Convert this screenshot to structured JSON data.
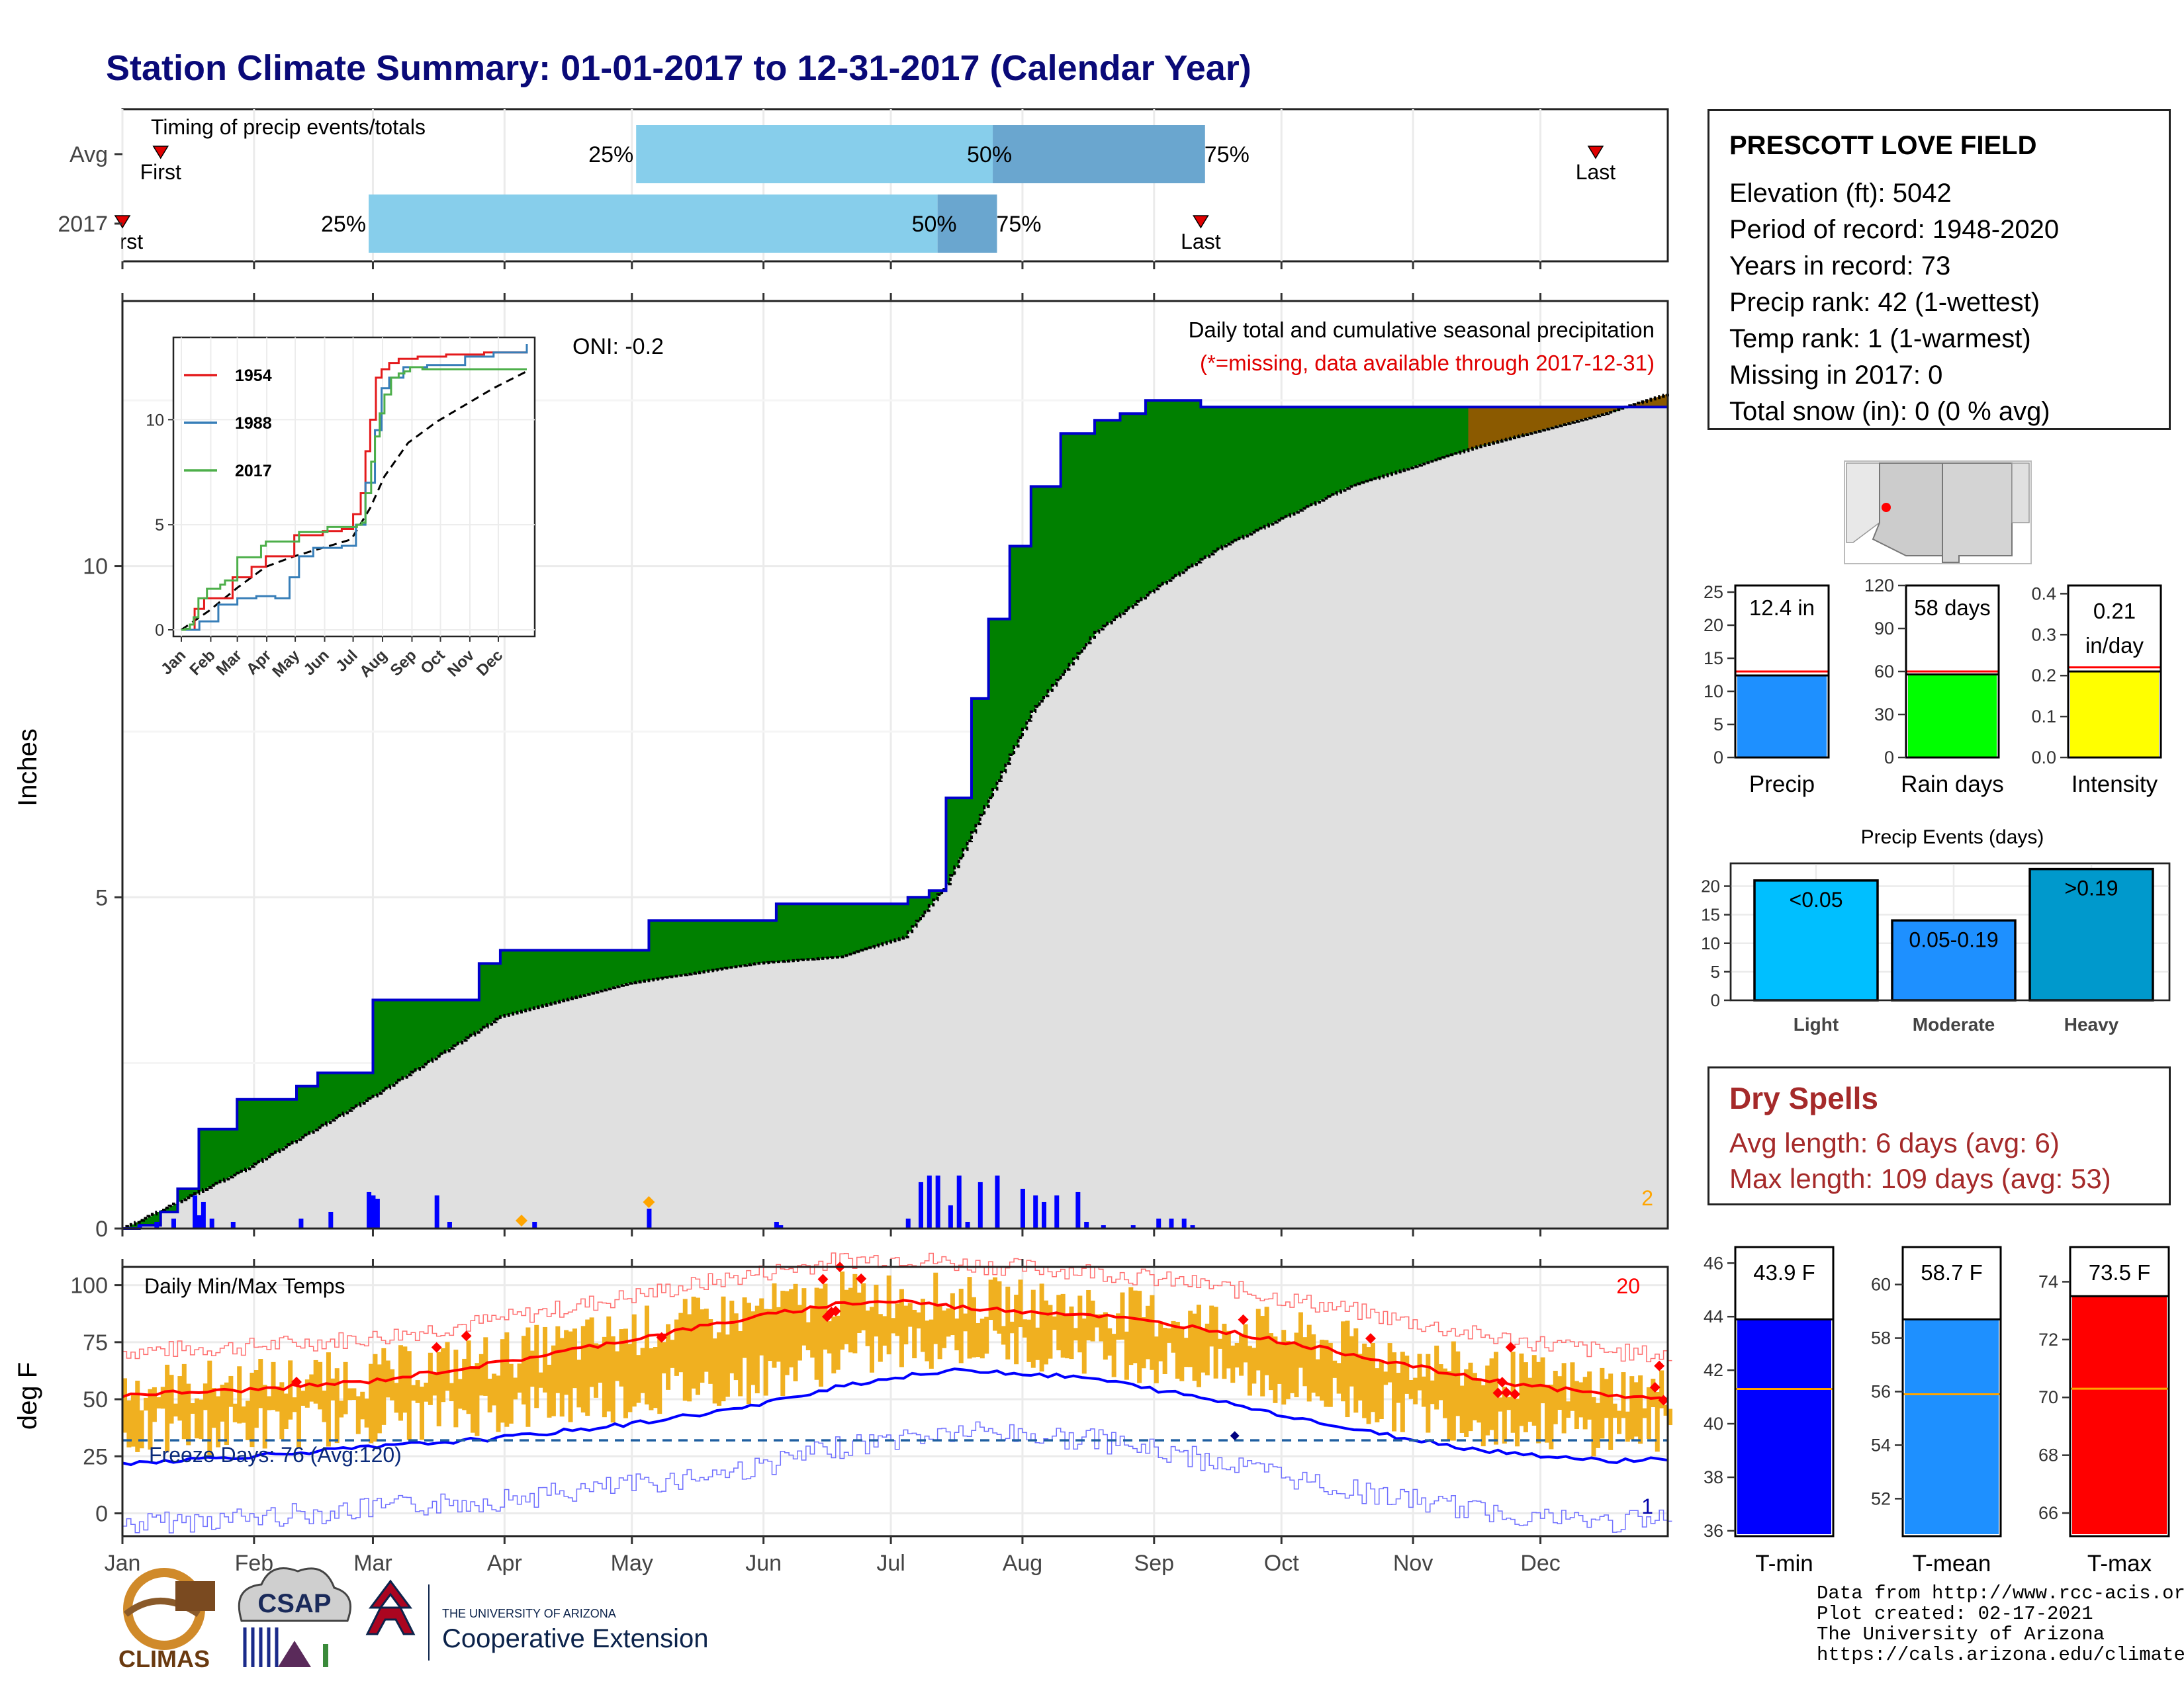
{
  "title": "Station Climate Summary: 01-01-2017 to 12-31-2017 (Calendar Year)",
  "colors": {
    "accent_title": "#0a0a78",
    "cumulative_above": "#008000",
    "cumulative_below_fill": "#e0e0e0",
    "daily_bars": "#0000ff",
    "range_bars": "#f0b020",
    "max_temp_avg": "#ff0000",
    "min_temp_avg": "#0000ff",
    "dry_spells": "#a52a2a",
    "tmin_bar": "#0000ff",
    "tmean_bar": "#1e90ff",
    "tmax_bar": "#ff0000",
    "precip_bar": "#1e90ff",
    "raindays_bar": "#00ff00",
    "intensity_bar": "#ffff00"
  },
  "months": [
    "Jan",
    "Feb",
    "Mar",
    "Apr",
    "May",
    "Jun",
    "Jul",
    "Aug",
    "Sep",
    "Oct",
    "Nov",
    "Dec"
  ],
  "timing": {
    "label": "Timing of precip events/totals",
    "rows": [
      {
        "name": "Avg",
        "first_label": "First",
        "last_label": "Last",
        "first_doy": 10,
        "last_doy": 348,
        "p25_doy": 122,
        "p50_doy": 206,
        "p75_doy": 256,
        "p25_label": "25%",
        "p50_label": "50%",
        "p75_label": "75%"
      },
      {
        "name": "2017",
        "first_label": "First",
        "last_label": "Last",
        "first_doy": 1,
        "last_doy": 255,
        "p25_doy": 59,
        "p50_doy": 193,
        "p75_doy": 207,
        "p25_label": "25%",
        "p50_label": "50%",
        "p75_label": "75%"
      }
    ]
  },
  "precip_panel": {
    "ylabel": "Inches",
    "yticks": [
      0,
      5,
      10
    ],
    "ylim": [
      0,
      14
    ],
    "title": "Daily total and cumulative seasonal precipitation",
    "subtitle": "(*=missing, data available through 2017-12-31)",
    "oni": "ONI: -0.2",
    "count_label": "2",
    "inset": {
      "yticks": [
        0,
        5,
        10
      ],
      "series": [
        {
          "name": "1954",
          "color": "#e41a1c"
        },
        {
          "name": "1988",
          "color": "#377eb8"
        },
        {
          "name": "2017",
          "color": "#4daf4a"
        }
      ]
    }
  },
  "chart_data": [
    {
      "type": "area",
      "title": "Daily total and cumulative seasonal precipitation",
      "ylabel": "Inches",
      "ylim": [
        0,
        14
      ],
      "series": [
        {
          "name": "2017 cumulative",
          "x_doy": [
            1,
            5,
            10,
            14,
            19,
            28,
            33,
            38,
            42,
            47,
            55,
            60,
            65,
            75,
            85,
            90,
            98,
            106,
            125,
            140,
            155,
            163,
            170,
            182,
            186,
            191,
            195,
            201,
            205,
            210,
            215,
            222,
            230,
            236,
            242,
            255,
            280,
            310,
            365
          ],
          "values": [
            0,
            0.05,
            0.25,
            0.6,
            1.5,
            1.95,
            1.95,
            1.95,
            2.15,
            2.35,
            2.35,
            3.45,
            3.45,
            3.45,
            4.0,
            4.2,
            4.2,
            4.2,
            4.65,
            4.65,
            4.9,
            4.9,
            4.9,
            4.9,
            5.0,
            5.1,
            6.5,
            8.0,
            9.2,
            10.3,
            11.2,
            12.0,
            12.2,
            12.3,
            12.5,
            12.4,
            12.4,
            12.4,
            12.4
          ]
        },
        {
          "name": "Avg cumulative",
          "x_doy": [
            1,
            30,
            60,
            90,
            120,
            150,
            170,
            185,
            195,
            205,
            215,
            230,
            245,
            260,
            290,
            320,
            350,
            365
          ],
          "values": [
            0,
            0.9,
            2.0,
            3.2,
            3.7,
            4.0,
            4.1,
            4.4,
            5.2,
            6.5,
            7.8,
            9.0,
            9.7,
            10.3,
            11.2,
            11.8,
            12.3,
            12.6
          ]
        }
      ],
      "daily_bars": {
        "x_doy": [
          5,
          9,
          13,
          18,
          19,
          20,
          22,
          27,
          43,
          50,
          59,
          60,
          61,
          75,
          78,
          98,
          125,
          155,
          156,
          186,
          189,
          191,
          193,
          196,
          198,
          200,
          203,
          207,
          213,
          216,
          218,
          221,
          226,
          228,
          232,
          239,
          245,
          248,
          251,
          253
        ],
        "values": [
          0.05,
          0.1,
          0.15,
          0.5,
          0.2,
          0.4,
          0.15,
          0.1,
          0.15,
          0.25,
          0.55,
          0.5,
          0.45,
          0.5,
          0.1,
          0.1,
          0.3,
          0.1,
          0.05,
          0.15,
          0.7,
          0.8,
          0.8,
          0.35,
          0.8,
          0.1,
          0.7,
          0.8,
          0.6,
          0.5,
          0.4,
          0.5,
          0.55,
          0.1,
          0.05,
          0.05,
          0.15,
          0.15,
          0.15,
          0.05
        ]
      },
      "missing_markers_doy": [
        95,
        125
      ]
    },
    {
      "type": "line",
      "title": "Daily Min/Max Temps",
      "ylabel": "deg F",
      "yticks": [
        0,
        25,
        50,
        75,
        100
      ],
      "ylim": [
        -10,
        108
      ],
      "series": [
        {
          "name": "avg max",
          "x_doy": [
            1,
            30,
            60,
            90,
            120,
            150,
            170,
            185,
            200,
            230,
            260,
            290,
            320,
            350,
            365
          ],
          "values": [
            52,
            54,
            58,
            66,
            76,
            86,
            92,
            93,
            90,
            87,
            80,
            70,
            59,
            52,
            50
          ]
        },
        {
          "name": "avg min",
          "x_doy": [
            1,
            30,
            60,
            90,
            120,
            150,
            170,
            185,
            200,
            230,
            260,
            290,
            320,
            350,
            365
          ],
          "values": [
            22,
            25,
            29,
            33,
            39,
            47,
            56,
            60,
            63,
            59,
            49,
            37,
            28,
            23,
            24
          ]
        }
      ],
      "freeze_line": 32,
      "freeze_label": "Freeze Days: 76 (Avg:120)",
      "record_high_count": "20",
      "record_low_count": "1"
    },
    {
      "type": "bar",
      "title": "Precip Events (days)",
      "categories": [
        "Light",
        "Moderate",
        "Heavy"
      ],
      "values": [
        21,
        14,
        23
      ],
      "bar_labels": [
        "<0.05",
        "0.05-0.19",
        ">0.19"
      ],
      "yticks": [
        0,
        5,
        10,
        15,
        20
      ],
      "ylim": [
        0,
        24
      ]
    }
  ],
  "station": {
    "name": "PRESCOTT LOVE FIELD",
    "lines": [
      "Elevation (ft): 5042",
      "Period of record: 1948-2020",
      "Years in record: 73",
      "Precip rank: 42 (1-wettest)",
      "Temp rank: 1 (1-warmest)",
      "Missing in 2017: 0",
      "Total snow (in): 0 (0 % avg)"
    ]
  },
  "mini_bars": [
    {
      "name": "Precip",
      "value": 12.4,
      "avg": 13.0,
      "ymax": 26,
      "yticks": [
        0,
        5,
        10,
        15,
        20,
        25
      ],
      "label_lines": [
        "12.4 in"
      ],
      "color": "#1e90ff"
    },
    {
      "name": "Rain days",
      "value": 58,
      "avg": 60,
      "ymax": 120,
      "yticks": [
        0,
        30,
        60,
        90,
        120
      ],
      "label_lines": [
        "58 days"
      ],
      "color": "#00ff00"
    },
    {
      "name": "Intensity",
      "value": 0.21,
      "avg": 0.22,
      "ymax": 0.42,
      "yticks": [
        0.0,
        0.1,
        0.2,
        0.3,
        0.4
      ],
      "ytick_labels": [
        "0.0",
        "0.1",
        "0.2",
        "0.3",
        "0.4"
      ],
      "label_lines": [
        "0.21",
        "in/day"
      ],
      "color": "#ffff00"
    }
  ],
  "dry_spells": {
    "title": "Dry Spells",
    "avg_line": "Avg length: 6 days (avg: 6)",
    "max_line": "Max length: 109 days (avg: 53)"
  },
  "temp_bars": [
    {
      "name": "T-min",
      "value": 43.9,
      "avg": 41.3,
      "ymin": 35.8,
      "ymax": 46.6,
      "yticks": [
        36,
        38,
        40,
        42,
        44,
        46
      ],
      "label": "43.9 F",
      "color": "#0000ff"
    },
    {
      "name": "T-mean",
      "value": 58.7,
      "avg": 55.9,
      "ymin": 50.6,
      "ymax": 61.4,
      "yticks": [
        52,
        54,
        56,
        58,
        60
      ],
      "label": "58.7 F",
      "color": "#1e90ff"
    },
    {
      "name": "T-max",
      "value": 73.5,
      "avg": 70.3,
      "ymin": 65.2,
      "ymax": 75.2,
      "yticks": [
        66,
        68,
        70,
        72,
        74
      ],
      "label": "73.5 F",
      "color": "#ff0000"
    }
  ],
  "logos": {
    "climas": "CLIMAS",
    "csap": "CSAP",
    "ua_small": "THE UNIVERSITY OF ARIZONA",
    "ua_big": "Cooperative Extension"
  },
  "credits": [
    "Data from http://www.rcc-acis.org/",
    "Plot created: 02-17-2021",
    "The University of Arizona",
    "https://cals.arizona.edu/climate/"
  ]
}
